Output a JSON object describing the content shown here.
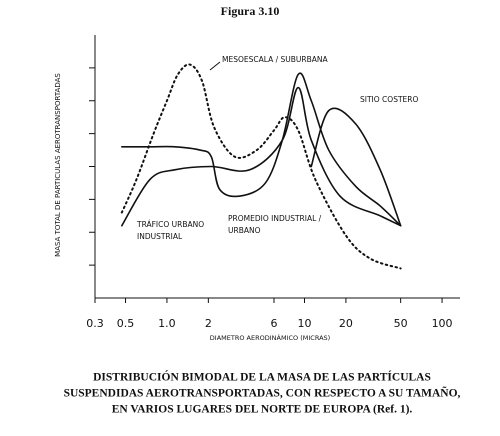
{
  "chart_data": {
    "type": "line",
    "title": "Figura 3.10",
    "x_label": "DIAMETRO AERODINÁMICO (MICRAS)",
    "y_label": "MASA TOTAL DE PARTICULAS AEROTRANSPORTADAS",
    "caption": [
      "DISTRIBUCIÓN BIMODAL DE LA MASA DE LAS PARTÍCULAS",
      "SUSPENDIDAS AEROTRANSPORTADAS, CON RESPECTO A SU TAMAÑO,",
      "EN VARIOS LUGARES DEL NORTE DE EUROPA (Ref. 1)."
    ],
    "x_scale": "log",
    "xlim": [
      0.3,
      135
    ],
    "xticks": [
      0.3,
      0.5,
      {
        "value": 1,
        "label": "1.0"
      },
      2,
      6,
      10,
      20,
      50,
      100
    ],
    "ylim": [
      0,
      8
    ],
    "yticks": [
      1,
      2,
      3,
      4,
      5,
      6,
      7
    ],
    "series": [
      {
        "name": [
          "MESOESCALA / SUBURBANA"
        ],
        "color": "#111111",
        "style": "dotted",
        "x": [
          0.47,
          0.6,
          0.8,
          1.0,
          1.2,
          1.47,
          1.8,
          2.2,
          3.1,
          4.5,
          6,
          7.2,
          9,
          12,
          20,
          30,
          50
        ],
        "values": [
          2.6,
          3.6,
          5.0,
          6.0,
          6.8,
          7.1,
          6.6,
          5.2,
          4.3,
          4.5,
          5.1,
          5.5,
          5.1,
          3.6,
          1.9,
          1.2,
          0.9
        ]
      },
      {
        "name": [
          "SITIO COSTERO"
        ],
        "color": "#111111",
        "style": "solid",
        "x": [
          11.2,
          15,
          23.5,
          35.5,
          50
        ],
        "values": [
          4.0,
          5.7,
          5.3,
          3.9,
          2.2
        ]
      },
      {
        "name": [
          "TRÁFICO URBANO",
          "INDUSTRIAL"
        ],
        "color": "#111111",
        "style": "solid",
        "x": [
          0.47,
          0.75,
          1.14,
          2.1,
          4.0,
          6.9,
          9.0,
          11.2,
          18.1,
          35.5,
          50
        ],
        "values": [
          2.2,
          3.6,
          3.9,
          4.0,
          3.9,
          4.8,
          6.4,
          4.8,
          3.1,
          2.5,
          2.2
        ]
      },
      {
        "name": [
          "PROMEDIO INDUSTRIAL /",
          "URBANO"
        ],
        "color": "#111111",
        "style": "solid",
        "x": [
          0.47,
          0.75,
          1.14,
          1.74,
          2.1,
          2.42,
          3.4,
          5.2,
          6.9,
          9.0,
          11.2,
          15,
          23.5,
          35.5,
          50
        ],
        "values": [
          4.6,
          4.6,
          4.6,
          4.5,
          4.3,
          3.3,
          3.1,
          3.5,
          4.8,
          6.8,
          6.0,
          4.5,
          3.4,
          2.8,
          2.2
        ]
      }
    ]
  }
}
